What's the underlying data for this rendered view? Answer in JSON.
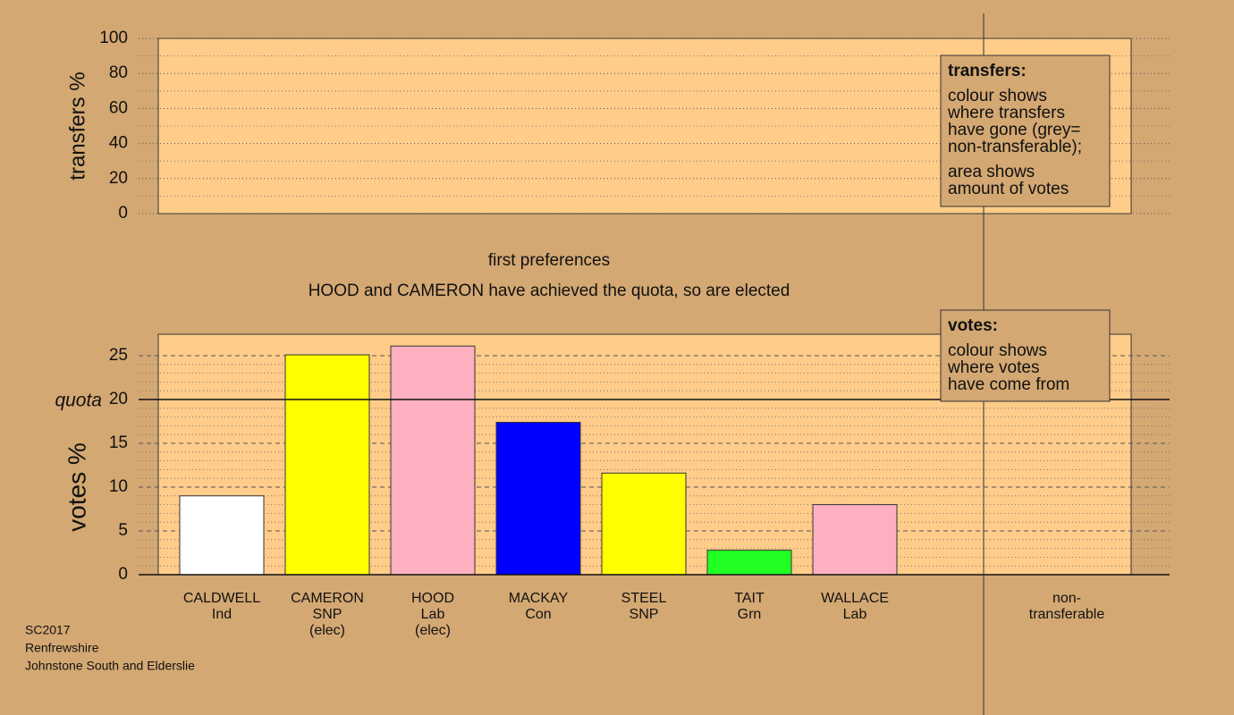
{
  "chart_data": [
    {
      "type": "axes",
      "y_label": "transfers %",
      "ylim": [
        0,
        100
      ],
      "yticks": [
        0,
        20,
        40,
        60,
        80,
        100
      ],
      "grid": true
    },
    {
      "type": "bar",
      "title": "first preferences",
      "subtitle": "HOOD and CAMERON have achieved the quota, so are elected",
      "y_label": "votes %",
      "ylim": [
        0,
        27.45
      ],
      "yticks": [
        0,
        5,
        10,
        15,
        20,
        25
      ],
      "grid": true,
      "quota": {
        "value": 20,
        "label": "quota"
      },
      "categories": [
        [
          "CALDWELL",
          "Ind"
        ],
        [
          "CAMERON",
          "SNP",
          "(elec)"
        ],
        [
          "HOOD",
          "Lab",
          "(elec)"
        ],
        [
          "MACKAY",
          "Con"
        ],
        [
          "STEEL",
          "SNP"
        ],
        [
          "TAIT",
          "Grn"
        ],
        [
          "WALLACE",
          "Lab"
        ]
      ],
      "values": [
        9.0,
        25.1,
        26.1,
        17.4,
        11.6,
        2.8,
        8.0
      ],
      "colors": [
        "#ffffff",
        "#ffff00",
        "#ffb0c0",
        "#0000ff",
        "#ffff00",
        "#22ff22",
        "#ffb0c0"
      ],
      "nontransferable_label": [
        "non-",
        "transferable"
      ]
    }
  ],
  "legends": [
    {
      "title": "transfers:",
      "paragraphs": [
        [
          "colour shows",
          "where transfers",
          "have gone (grey=",
          "non-transferable);"
        ],
        [
          "area shows",
          "amount of votes"
        ]
      ]
    },
    {
      "title": "votes:",
      "paragraphs": [
        [
          "colour shows",
          "where votes",
          "have come from"
        ]
      ]
    }
  ],
  "footer": [
    "SC2017",
    "Renfrewshire",
    "Johnstone South and Elderslie"
  ]
}
